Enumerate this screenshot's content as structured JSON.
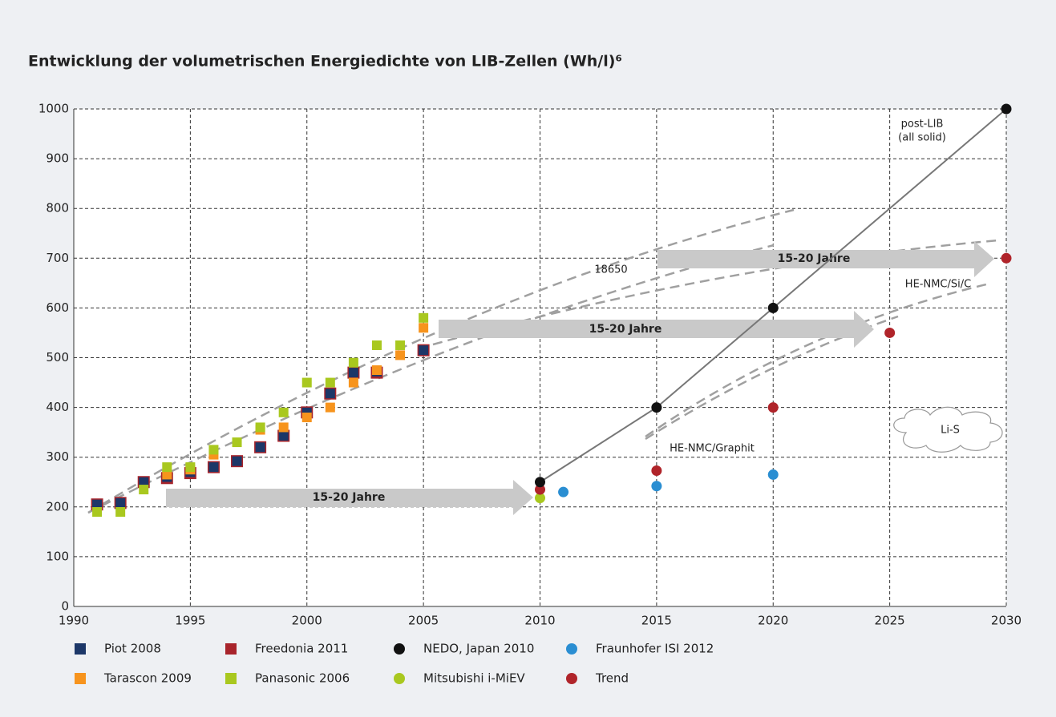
{
  "chart_data": {
    "type": "scatter",
    "title": "Entwicklung der volumetrischen Energiedichte von LIB-Zellen (Wh/l)⁶",
    "xlim": [
      1990,
      2030
    ],
    "xticks": [
      1990,
      1995,
      2000,
      2005,
      2010,
      2015,
      2020,
      2025,
      2030
    ],
    "ylim": [
      0,
      1000
    ],
    "yticks": [
      0,
      100,
      200,
      300,
      400,
      500,
      600,
      700,
      800,
      900,
      1000
    ],
    "grid": true,
    "annotations": [
      "post-LIB",
      "(all solid)",
      "18650",
      "HE-NMC/Si/C",
      "HE-NMC/Graphit",
      "Li-S",
      "15-20 Jahre",
      "15-20 Jahre",
      "15-20 Jahre"
    ],
    "series": [
      {
        "name": "Piot 2008",
        "color": "#1c3768",
        "marker": "square",
        "x": [
          1991,
          1992,
          1993,
          1994,
          1995,
          1996,
          1997,
          1998,
          1999,
          2000,
          2001,
          2002,
          2003,
          2005
        ],
        "values": [
          205,
          208,
          250,
          260,
          270,
          280,
          292,
          320,
          343,
          390,
          428,
          470,
          472,
          515
        ]
      },
      {
        "name": "Freedonia 2011",
        "color": "#a8242b",
        "marker": "square",
        "x": [
          1991,
          1992,
          1993,
          1994,
          1995,
          1996,
          1997,
          1998,
          1999,
          2000,
          2001,
          2002,
          2003,
          2005
        ],
        "values": [
          205,
          208,
          250,
          258,
          268,
          280,
          292,
          320,
          343,
          390,
          428,
          470,
          470,
          515
        ]
      },
      {
        "name": "NEDO, Japan 2010",
        "color": "#111111",
        "marker": "circle",
        "x": [
          2010,
          2015,
          2020,
          2030
        ],
        "values": [
          250,
          400,
          600,
          1000
        ]
      },
      {
        "name": "Fraunhofer ISI 2012",
        "color": "#2a8ed2",
        "marker": "circle",
        "x": [
          2011,
          2015,
          2020
        ],
        "values": [
          230,
          242,
          265
        ]
      },
      {
        "name": "Tarascon 2009",
        "color": "#f7941d",
        "marker": "square",
        "x": [
          1994,
          1995,
          1996,
          1998,
          1999,
          2000,
          2001,
          2002,
          2003,
          2004,
          2005
        ],
        "values": [
          265,
          275,
          305,
          355,
          360,
          380,
          400,
          450,
          475,
          505,
          560
        ]
      },
      {
        "name": "Panasonic 2006",
        "color": "#a9c81f",
        "marker": "square",
        "x": [
          1991,
          1992,
          1993,
          1994,
          1995,
          1996,
          1997,
          1998,
          1999,
          2000,
          2001,
          2002,
          2003,
          2004,
          2005
        ],
        "values": [
          190,
          190,
          235,
          280,
          280,
          315,
          330,
          360,
          390,
          450,
          450,
          490,
          525,
          525,
          580
        ]
      },
      {
        "name": "Mitsubishi i-MiEV",
        "color": "#a9c81f",
        "marker": "circle",
        "x": [
          2010
        ],
        "values": [
          218
        ]
      },
      {
        "name": "Trend",
        "color": "#b0242a",
        "marker": "circle",
        "x": [
          2010,
          2015,
          2020,
          2025,
          2030
        ],
        "values": [
          235,
          273,
          400,
          550,
          700
        ]
      }
    ]
  }
}
